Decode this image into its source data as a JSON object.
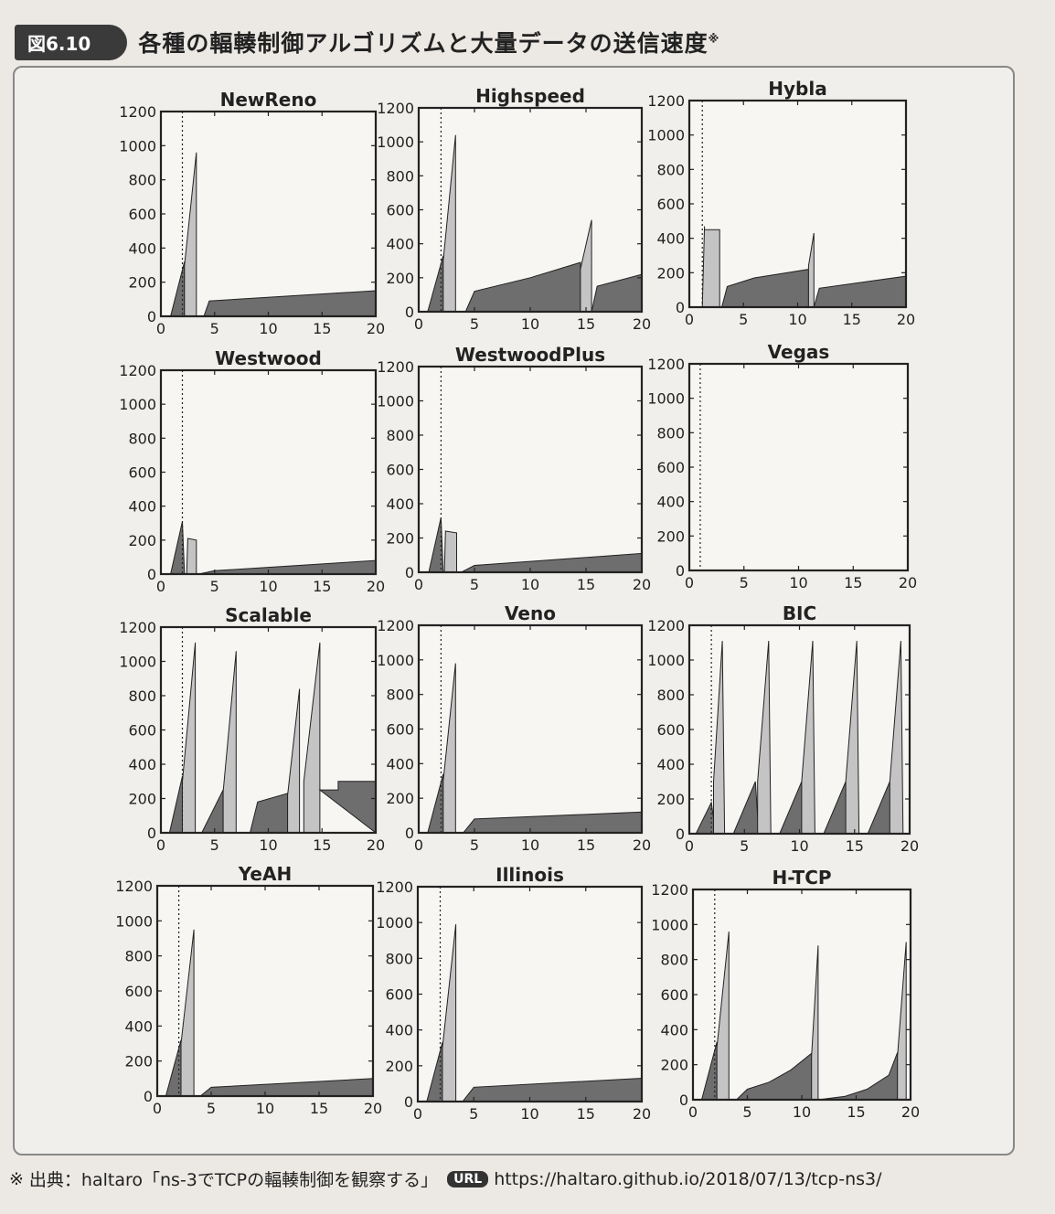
{
  "figure": {
    "badge": "図6.10",
    "title": "各種の輻輳制御アルゴリズムと大量データの送信速度",
    "title_mark": "※"
  },
  "footnote": {
    "mark": "※",
    "text": "出典：haltaro「ns-3でTCPの輻輳制御を観察する」",
    "url_label": "URL",
    "url": "https://haltaro.github.io/2018/07/13/tcp-ns3/"
  },
  "colors": {
    "dark_fill": "#6e6e6e",
    "light_fill": "#c4c4c4",
    "frame": "#222222"
  },
  "chart_data": [
    {
      "type": "area",
      "title": "NewReno",
      "xlim": [
        0,
        20
      ],
      "ylim": [
        0,
        1200
      ],
      "xticks": [
        0,
        5,
        10,
        15,
        20
      ],
      "yticks": [
        0,
        200,
        400,
        600,
        800,
        1000,
        1200
      ],
      "dotted_x": 2,
      "series": [
        {
          "fill": "dark",
          "x": [
            0.9,
            2.2,
            2.2,
            0.9
          ],
          "y": [
            0,
            320,
            0,
            0
          ]
        },
        {
          "fill": "light",
          "x": [
            2.2,
            3.3,
            3.3,
            2.2
          ],
          "y": [
            300,
            960,
            0,
            0
          ]
        },
        {
          "fill": "dark",
          "x": [
            4,
            4.5,
            20,
            20
          ],
          "y": [
            0,
            90,
            150,
            0
          ]
        }
      ]
    },
    {
      "type": "area",
      "title": "Highspeed",
      "xlim": [
        0,
        20
      ],
      "ylim": [
        0,
        1200
      ],
      "xticks": [
        0,
        5,
        10,
        15,
        20
      ],
      "yticks": [
        0,
        200,
        400,
        600,
        800,
        1000,
        1200
      ],
      "dotted_x": 2,
      "series": [
        {
          "fill": "dark",
          "x": [
            0.8,
            2.2,
            2.2,
            0.8
          ],
          "y": [
            0,
            330,
            0,
            0
          ]
        },
        {
          "fill": "light",
          "x": [
            2.2,
            3.3,
            3.3,
            2.2
          ],
          "y": [
            300,
            1040,
            0,
            0
          ]
        },
        {
          "fill": "dark",
          "x": [
            4.2,
            5,
            10,
            14.5,
            14.5
          ],
          "y": [
            0,
            120,
            200,
            290,
            0
          ]
        },
        {
          "fill": "light",
          "x": [
            14.5,
            15.5,
            15.5,
            14.5
          ],
          "y": [
            250,
            540,
            0,
            0
          ]
        },
        {
          "fill": "dark",
          "x": [
            15.5,
            16,
            20,
            20
          ],
          "y": [
            0,
            150,
            220,
            0
          ]
        }
      ]
    },
    {
      "type": "area",
      "title": "Hybla",
      "xlim": [
        0,
        20
      ],
      "ylim": [
        0,
        1200
      ],
      "xticks": [
        0,
        5,
        10,
        15,
        20
      ],
      "yticks": [
        0,
        200,
        400,
        600,
        800,
        1000,
        1200
      ],
      "dotted_x": 1.2,
      "series": [
        {
          "fill": "light",
          "x": [
            1.2,
            1.4,
            1.4,
            2.8,
            2.8,
            1.2
          ],
          "y": [
            0,
            470,
            450,
            450,
            0,
            0
          ]
        },
        {
          "fill": "dark",
          "x": [
            3,
            3.5,
            6,
            11,
            11
          ],
          "y": [
            0,
            120,
            170,
            220,
            0
          ]
        },
        {
          "fill": "light",
          "x": [
            11,
            11.5,
            11.5,
            11
          ],
          "y": [
            240,
            430,
            0,
            0
          ]
        },
        {
          "fill": "dark",
          "x": [
            11.5,
            12,
            20,
            20
          ],
          "y": [
            0,
            110,
            180,
            0
          ]
        }
      ]
    },
    {
      "type": "area",
      "title": "Westwood",
      "xlim": [
        0,
        20
      ],
      "ylim": [
        0,
        1200
      ],
      "xticks": [
        0,
        5,
        10,
        15,
        20
      ],
      "yticks": [
        0,
        200,
        400,
        600,
        800,
        1000,
        1200
      ],
      "dotted_x": 2,
      "series": [
        {
          "fill": "dark",
          "x": [
            0.9,
            2,
            2.2,
            2.2
          ],
          "y": [
            0,
            310,
            0,
            0
          ]
        },
        {
          "fill": "light",
          "x": [
            2.4,
            2.5,
            3.3,
            3.3
          ],
          "y": [
            0,
            210,
            200,
            0
          ]
        },
        {
          "fill": "dark",
          "x": [
            3.5,
            5,
            20,
            20
          ],
          "y": [
            0,
            20,
            80,
            0
          ]
        }
      ]
    },
    {
      "type": "area",
      "title": "WestwoodPlus",
      "xlim": [
        0,
        20
      ],
      "ylim": [
        0,
        1200
      ],
      "xticks": [
        0,
        5,
        10,
        15,
        20
      ],
      "yticks": [
        0,
        200,
        400,
        600,
        800,
        1000,
        1200
      ],
      "dotted_x": 2,
      "series": [
        {
          "fill": "dark",
          "x": [
            0.9,
            2,
            2.2,
            2.2
          ],
          "y": [
            0,
            320,
            0,
            0
          ]
        },
        {
          "fill": "light",
          "x": [
            2.3,
            2.4,
            3.4,
            3.4
          ],
          "y": [
            0,
            240,
            230,
            0
          ]
        },
        {
          "fill": "dark",
          "x": [
            3.8,
            5,
            20,
            20
          ],
          "y": [
            0,
            40,
            110,
            0
          ]
        }
      ]
    },
    {
      "type": "area",
      "title": "Vegas",
      "xlim": [
        0,
        20
      ],
      "ylim": [
        0,
        1200
      ],
      "xticks": [
        0,
        5,
        10,
        15,
        20
      ],
      "yticks": [
        0,
        200,
        400,
        600,
        800,
        1000,
        1200
      ],
      "dotted_x": 1,
      "series": []
    },
    {
      "type": "area",
      "title": "Scalable",
      "xlim": [
        0,
        20
      ],
      "ylim": [
        0,
        1200
      ],
      "xticks": [
        0,
        5,
        10,
        15,
        20
      ],
      "yticks": [
        0,
        200,
        400,
        600,
        800,
        1000,
        1200
      ],
      "dotted_x": 2,
      "series": [
        {
          "fill": "dark",
          "x": [
            0.8,
            2,
            2,
            0.8
          ],
          "y": [
            0,
            330,
            0,
            0
          ]
        },
        {
          "fill": "light",
          "x": [
            2,
            3.2,
            3.2,
            2
          ],
          "y": [
            300,
            1110,
            0,
            0
          ]
        },
        {
          "fill": "dark",
          "x": [
            3.8,
            5.8,
            5.8
          ],
          "y": [
            0,
            250,
            0
          ]
        },
        {
          "fill": "light",
          "x": [
            5.8,
            7,
            7,
            5.8
          ],
          "y": [
            240,
            1060,
            0,
            0
          ]
        },
        {
          "fill": "dark",
          "x": [
            8.3,
            9,
            11.8,
            11.8
          ],
          "y": [
            0,
            180,
            230,
            0
          ]
        },
        {
          "fill": "light",
          "x": [
            11.8,
            12.9,
            12.9,
            11.8
          ],
          "y": [
            220,
            840,
            0,
            0
          ]
        },
        {
          "fill": "light",
          "x": [
            13.3,
            14.8,
            14.8,
            13.3
          ],
          "y": [
            300,
            1110,
            0,
            0
          ]
        },
        {
          "fill": "dark",
          "x": [
            14.8,
            16.5,
            16.5,
            20,
            20
          ],
          "y": [
            250,
            250,
            300,
            300,
            0
          ]
        }
      ]
    },
    {
      "type": "area",
      "title": "Veno",
      "xlim": [
        0,
        20
      ],
      "ylim": [
        0,
        1200
      ],
      "xticks": [
        0,
        5,
        10,
        15,
        20
      ],
      "yticks": [
        0,
        200,
        400,
        600,
        800,
        1000,
        1200
      ],
      "dotted_x": 2,
      "series": [
        {
          "fill": "dark",
          "x": [
            0.8,
            2.2,
            2.2,
            0.8
          ],
          "y": [
            0,
            340,
            0,
            0
          ]
        },
        {
          "fill": "light",
          "x": [
            2.2,
            3.3,
            3.3,
            2.2
          ],
          "y": [
            300,
            980,
            0,
            0
          ]
        },
        {
          "fill": "dark",
          "x": [
            4,
            5,
            20,
            20
          ],
          "y": [
            0,
            80,
            120,
            0
          ]
        }
      ]
    },
    {
      "type": "area",
      "title": "BIC",
      "xlim": [
        0,
        20
      ],
      "ylim": [
        0,
        1200
      ],
      "xticks": [
        0,
        5,
        10,
        15,
        20
      ],
      "yticks": [
        0,
        200,
        400,
        600,
        800,
        1000,
        1200
      ],
      "dotted_x": 2,
      "series": [
        {
          "fill": "dark",
          "x": [
            0.6,
            2,
            2.4,
            0.6
          ],
          "y": [
            0,
            180,
            0,
            0
          ]
        },
        {
          "fill": "light",
          "x": [
            2.2,
            3,
            3.2,
            2.2
          ],
          "y": [
            300,
            1110,
            0,
            0
          ]
        },
        {
          "fill": "dark",
          "x": [
            4,
            6,
            6.3,
            4
          ],
          "y": [
            0,
            300,
            0,
            0
          ]
        },
        {
          "fill": "light",
          "x": [
            6.2,
            7.2,
            7.4,
            6.2
          ],
          "y": [
            300,
            1110,
            0,
            0
          ]
        },
        {
          "fill": "dark",
          "x": [
            8.2,
            10.2,
            10.4,
            8.2
          ],
          "y": [
            0,
            300,
            0,
            0
          ]
        },
        {
          "fill": "light",
          "x": [
            10.2,
            11.2,
            11.4,
            10.2
          ],
          "y": [
            300,
            1110,
            0,
            0
          ]
        },
        {
          "fill": "dark",
          "x": [
            12.2,
            14.2,
            14.4,
            12.2
          ],
          "y": [
            0,
            300,
            0,
            0
          ]
        },
        {
          "fill": "light",
          "x": [
            14.2,
            15.2,
            15.4,
            14.2
          ],
          "y": [
            300,
            1110,
            0,
            0
          ]
        },
        {
          "fill": "dark",
          "x": [
            16.2,
            18.2,
            18.4,
            16.2
          ],
          "y": [
            0,
            300,
            0,
            0
          ]
        },
        {
          "fill": "light",
          "x": [
            18.2,
            19.2,
            19.4,
            18.2
          ],
          "y": [
            300,
            1110,
            0,
            0
          ]
        }
      ]
    },
    {
      "type": "area",
      "title": "YeAH",
      "xlim": [
        0,
        20
      ],
      "ylim": [
        0,
        1200
      ],
      "xticks": [
        0,
        5,
        10,
        15,
        20
      ],
      "yticks": [
        0,
        200,
        400,
        600,
        800,
        1000,
        1200
      ],
      "dotted_x": 2,
      "series": [
        {
          "fill": "dark",
          "x": [
            0.8,
            2.2,
            2.2,
            0.8
          ],
          "y": [
            0,
            320,
            0,
            0
          ]
        },
        {
          "fill": "light",
          "x": [
            2.2,
            3.4,
            3.4,
            2.2
          ],
          "y": [
            300,
            950,
            0,
            0
          ]
        },
        {
          "fill": "dark",
          "x": [
            4,
            5,
            20,
            20
          ],
          "y": [
            0,
            50,
            100,
            0
          ]
        }
      ]
    },
    {
      "type": "area",
      "title": "Illinois",
      "xlim": [
        0,
        20
      ],
      "ylim": [
        0,
        1200
      ],
      "xticks": [
        0,
        5,
        10,
        15,
        20
      ],
      "yticks": [
        0,
        200,
        400,
        600,
        800,
        1000,
        1200
      ],
      "dotted_x": 2,
      "series": [
        {
          "fill": "dark",
          "x": [
            0.8,
            2.2,
            2.2,
            0.8
          ],
          "y": [
            0,
            330,
            0,
            0
          ]
        },
        {
          "fill": "light",
          "x": [
            2.2,
            3.4,
            3.4,
            2.2
          ],
          "y": [
            300,
            990,
            0,
            0
          ]
        },
        {
          "fill": "dark",
          "x": [
            4,
            5,
            20,
            20
          ],
          "y": [
            0,
            80,
            130,
            0
          ]
        }
      ]
    },
    {
      "type": "area",
      "title": "H-TCP",
      "xlim": [
        0,
        20
      ],
      "ylim": [
        0,
        1200
      ],
      "xticks": [
        0,
        5,
        10,
        15,
        20
      ],
      "yticks": [
        0,
        200,
        400,
        600,
        800,
        1000,
        1200
      ],
      "dotted_x": 2,
      "series": [
        {
          "fill": "dark",
          "x": [
            0.8,
            2.2,
            2.2,
            0.8
          ],
          "y": [
            0,
            330,
            0,
            0
          ]
        },
        {
          "fill": "light",
          "x": [
            2.2,
            3.3,
            3.3,
            2.2
          ],
          "y": [
            300,
            960,
            0,
            0
          ]
        },
        {
          "fill": "dark",
          "x": [
            4,
            5,
            7,
            9,
            11,
            11
          ],
          "y": [
            0,
            60,
            100,
            170,
            270,
            0
          ]
        },
        {
          "fill": "light",
          "x": [
            10.9,
            11.5,
            11.5,
            10.9
          ],
          "y": [
            250,
            880,
            0,
            0
          ]
        },
        {
          "fill": "dark",
          "x": [
            11.5,
            14,
            16,
            18,
            18.8,
            18.8
          ],
          "y": [
            0,
            20,
            60,
            140,
            270,
            0
          ]
        },
        {
          "fill": "light",
          "x": [
            18.8,
            19.6,
            19.6,
            18.8
          ],
          "y": [
            250,
            900,
            0,
            0
          ]
        }
      ]
    }
  ]
}
